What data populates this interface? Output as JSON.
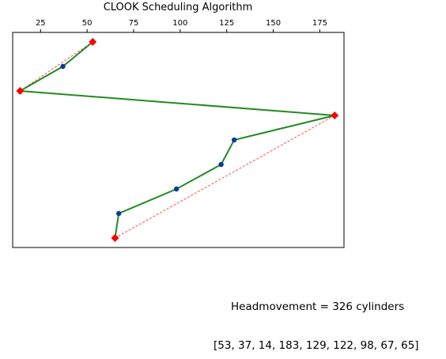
{
  "chart_data": {
    "type": "line",
    "title": "CLOOK Scheduling Algorithm",
    "xlabel": "",
    "ylabel": "",
    "xlim": [
      10,
      188
    ],
    "xticks": [
      25,
      50,
      75,
      100,
      125,
      150,
      175
    ],
    "x_axis_position": "top",
    "y_axis_labels": "hidden",
    "grid": false,
    "sequence": [
      53,
      37,
      14,
      183,
      129,
      122,
      98,
      67,
      65
    ],
    "series": [
      {
        "style": "solid",
        "values": [
          53,
          37,
          14,
          183,
          129,
          122,
          98,
          67,
          65
        ],
        "color": "#228b22",
        "marker": "circle",
        "marker_color": "#0a3d91",
        "highlight_indices": [
          0,
          2,
          3,
          8
        ],
        "highlight_marker": "diamond",
        "highlight_color": "#ff0000"
      },
      {
        "style": "dashed",
        "values": [
          53,
          14,
          183,
          65
        ],
        "color": "#ff4d4d"
      }
    ]
  },
  "headmovement_text": "Headmovement = 326 cylinders",
  "sequence_text": "[53, 37, 14, 183, 129, 122, 98, 67, 65]"
}
